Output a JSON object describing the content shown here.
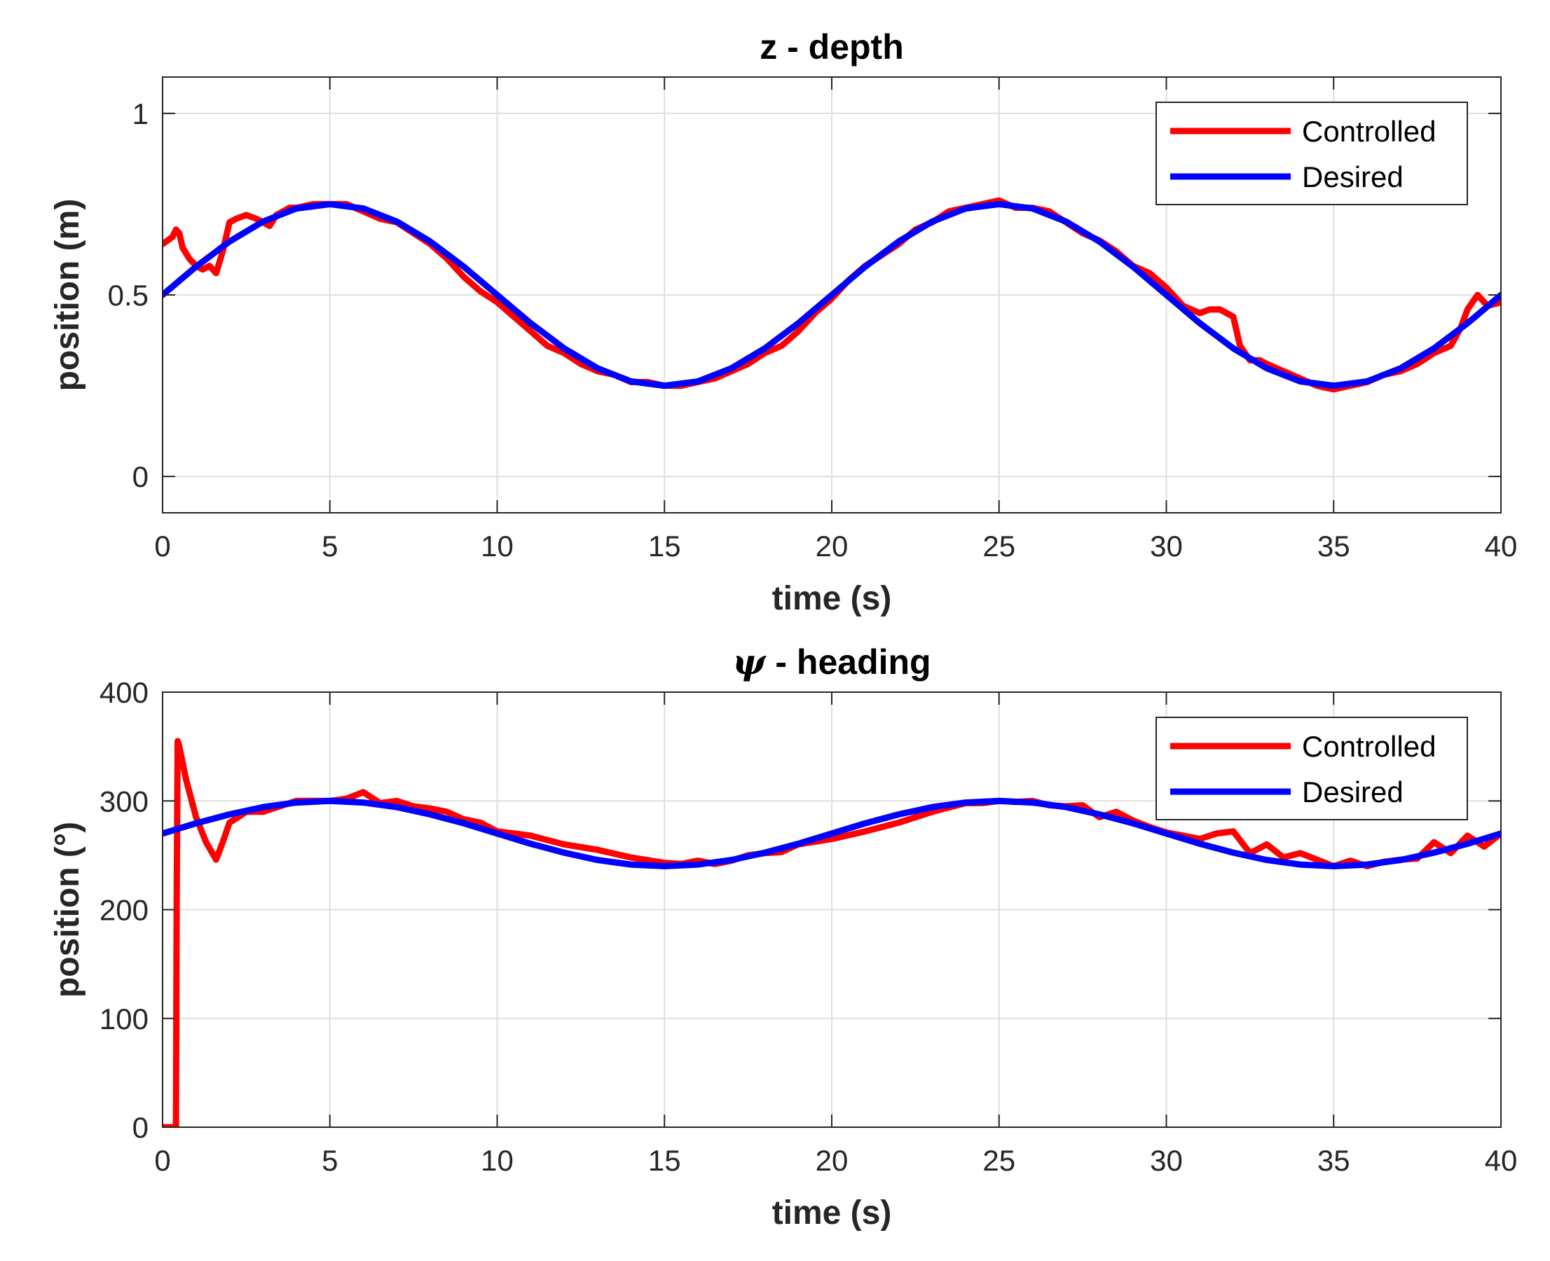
{
  "chart_data": [
    {
      "type": "line",
      "title": "z - depth",
      "title_symbol": "",
      "xlabel": "time (s)",
      "ylabel": "position (m)",
      "xlim": [
        0,
        40
      ],
      "ylim": [
        -0.1,
        1.1
      ],
      "xticks": [
        0,
        5,
        10,
        15,
        20,
        25,
        30,
        35,
        40
      ],
      "xtick_labels": [
        "0",
        "5",
        "10",
        "15",
        "20",
        "25",
        "30",
        "35",
        "40"
      ],
      "yticks": [
        0,
        0.5,
        1
      ],
      "ytick_labels": [
        "0",
        "0.5",
        "1"
      ],
      "grid": true,
      "legend_position": "top-right",
      "series": [
        {
          "name": "Controlled",
          "color": "#ff0000",
          "x": [
            0,
            0.3,
            0.4,
            0.5,
            0.6,
            0.8,
            1.0,
            1.2,
            1.4,
            1.6,
            1.8,
            2.0,
            2.2,
            2.5,
            2.8,
            3.0,
            3.2,
            3.4,
            3.6,
            3.8,
            4.0,
            4.5,
            5.0,
            5.5,
            6.0,
            6.5,
            7.0,
            7.5,
            8.0,
            8.5,
            9.0,
            9.5,
            10.0,
            10.5,
            11.0,
            11.5,
            12.0,
            12.5,
            13.0,
            13.5,
            14.0,
            14.5,
            15.0,
            15.5,
            16.0,
            16.5,
            17.0,
            17.5,
            18.0,
            18.5,
            19.0,
            19.5,
            20.0,
            20.5,
            21.0,
            21.5,
            22.0,
            22.5,
            23.0,
            23.5,
            24.0,
            24.5,
            25.0,
            25.5,
            26.0,
            26.5,
            27.0,
            27.5,
            28.0,
            28.5,
            29.0,
            29.5,
            30.0,
            30.5,
            31.0,
            31.3,
            31.6,
            32.0,
            32.2,
            32.5,
            32.8,
            33.0,
            33.5,
            34.0,
            34.5,
            35.0,
            35.5,
            36.0,
            36.5,
            37.0,
            37.5,
            38.0,
            38.5,
            38.8,
            39.0,
            39.3,
            39.6,
            40.0
          ],
          "values": [
            0.64,
            0.66,
            0.68,
            0.67,
            0.63,
            0.6,
            0.58,
            0.57,
            0.58,
            0.56,
            0.62,
            0.7,
            0.71,
            0.72,
            0.71,
            0.7,
            0.69,
            0.72,
            0.73,
            0.74,
            0.74,
            0.75,
            0.75,
            0.75,
            0.73,
            0.71,
            0.7,
            0.67,
            0.64,
            0.6,
            0.55,
            0.51,
            0.48,
            0.44,
            0.4,
            0.36,
            0.34,
            0.31,
            0.29,
            0.28,
            0.26,
            0.26,
            0.25,
            0.25,
            0.26,
            0.27,
            0.29,
            0.31,
            0.34,
            0.36,
            0.4,
            0.45,
            0.49,
            0.54,
            0.58,
            0.61,
            0.64,
            0.68,
            0.7,
            0.73,
            0.74,
            0.75,
            0.76,
            0.74,
            0.74,
            0.73,
            0.7,
            0.67,
            0.65,
            0.62,
            0.58,
            0.56,
            0.52,
            0.47,
            0.45,
            0.46,
            0.46,
            0.44,
            0.36,
            0.32,
            0.32,
            0.31,
            0.29,
            0.27,
            0.25,
            0.24,
            0.25,
            0.26,
            0.28,
            0.29,
            0.31,
            0.34,
            0.36,
            0.41,
            0.46,
            0.5,
            0.47,
            0.48
          ]
        },
        {
          "name": "Desired",
          "color": "#0000ff",
          "x": [
            0,
            1,
            2,
            3,
            4,
            5,
            6,
            7,
            8,
            9,
            10,
            11,
            12,
            13,
            14,
            15,
            16,
            17,
            18,
            19,
            20,
            21,
            22,
            23,
            24,
            25,
            26,
            27,
            28,
            29,
            30,
            31,
            32,
            33,
            34,
            35,
            36,
            37,
            38,
            39,
            40
          ],
          "values": [
            0.5,
            0.578,
            0.647,
            0.702,
            0.738,
            0.75,
            0.738,
            0.702,
            0.647,
            0.578,
            0.5,
            0.422,
            0.353,
            0.298,
            0.262,
            0.25,
            0.262,
            0.298,
            0.353,
            0.422,
            0.5,
            0.578,
            0.647,
            0.702,
            0.738,
            0.75,
            0.738,
            0.702,
            0.647,
            0.578,
            0.5,
            0.422,
            0.353,
            0.298,
            0.262,
            0.25,
            0.262,
            0.298,
            0.353,
            0.422,
            0.5
          ]
        }
      ]
    },
    {
      "type": "line",
      "title": " - heading",
      "title_symbol": "ψ",
      "xlabel": "time (s)",
      "ylabel": "position (°)",
      "xlim": [
        0,
        40
      ],
      "ylim": [
        0,
        400
      ],
      "xticks": [
        0,
        5,
        10,
        15,
        20,
        25,
        30,
        35,
        40
      ],
      "xtick_labels": [
        "0",
        "5",
        "10",
        "15",
        "20",
        "25",
        "30",
        "35",
        "40"
      ],
      "yticks": [
        0,
        100,
        200,
        300,
        400
      ],
      "ytick_labels": [
        "0",
        "100",
        "200",
        "300",
        "400"
      ],
      "grid": true,
      "legend_position": "top-right",
      "series": [
        {
          "name": "Controlled",
          "color": "#ff0000",
          "x": [
            0,
            0.4,
            0.42,
            0.45,
            0.5,
            0.7,
            1.0,
            1.3,
            1.6,
            1.8,
            2.0,
            2.5,
            3.0,
            3.5,
            4.0,
            4.5,
            5.0,
            5.5,
            6.0,
            6.5,
            7.0,
            7.5,
            8.0,
            8.5,
            9.0,
            9.5,
            10.0,
            11.0,
            12.0,
            13.0,
            14.0,
            15.0,
            15.5,
            16.0,
            16.5,
            17.0,
            17.5,
            18.0,
            18.5,
            19.0,
            20.0,
            21.0,
            22.0,
            23.0,
            24.0,
            24.5,
            25.0,
            25.5,
            26.0,
            26.5,
            27.0,
            27.5,
            28.0,
            28.5,
            29.0,
            29.5,
            30.0,
            30.5,
            31.0,
            31.5,
            32.0,
            32.5,
            33.0,
            33.5,
            34.0,
            34.5,
            35.0,
            35.5,
            36.0,
            36.5,
            37.0,
            37.5,
            38.0,
            38.5,
            39.0,
            39.5,
            40.0
          ],
          "values": [
            0,
            0,
            200,
            355,
            350,
            320,
            285,
            262,
            246,
            262,
            280,
            290,
            290,
            295,
            300,
            300,
            300,
            302,
            308,
            298,
            300,
            295,
            293,
            290,
            283,
            280,
            272,
            268,
            260,
            255,
            248,
            243,
            242,
            245,
            242,
            245,
            250,
            252,
            253,
            260,
            265,
            272,
            280,
            290,
            298,
            298,
            300,
            299,
            300,
            296,
            295,
            296,
            285,
            290,
            282,
            276,
            271,
            268,
            265,
            270,
            272,
            252,
            260,
            248,
            252,
            246,
            240,
            245,
            240,
            244,
            246,
            247,
            262,
            252,
            268,
            258,
            270
          ]
        },
        {
          "name": "Desired",
          "color": "#0000ff",
          "x": [
            0,
            1,
            2,
            3,
            4,
            5,
            6,
            7,
            8,
            9,
            10,
            11,
            12,
            13,
            14,
            15,
            16,
            17,
            18,
            19,
            20,
            21,
            22,
            23,
            24,
            25,
            26,
            27,
            28,
            29,
            30,
            31,
            32,
            33,
            34,
            35,
            36,
            37,
            38,
            39,
            40
          ],
          "values": [
            270,
            279.4,
            287.6,
            294.3,
            298.5,
            300,
            298.5,
            294.3,
            287.6,
            279.4,
            270,
            260.6,
            252.4,
            245.7,
            241.5,
            240,
            241.5,
            245.7,
            252.4,
            260.6,
            270,
            279.4,
            287.6,
            294.3,
            298.5,
            300,
            298.5,
            294.3,
            287.6,
            279.4,
            270,
            260.6,
            252.4,
            245.7,
            241.5,
            240,
            241.5,
            245.7,
            252.4,
            260.6,
            270
          ]
        }
      ]
    }
  ]
}
